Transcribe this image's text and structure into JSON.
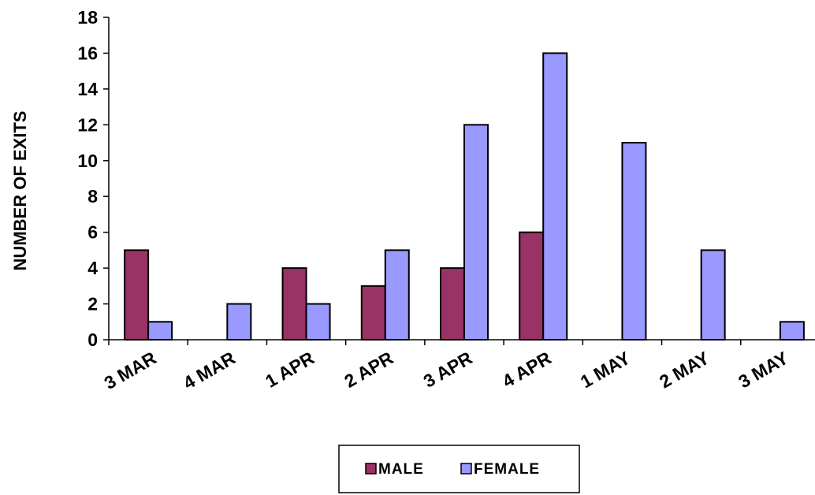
{
  "chart_data": {
    "type": "bar",
    "ylabel": "NUMBER OF EXITS",
    "categories": [
      "3 MAR",
      "4 MAR",
      "1 APR",
      "2 APR",
      "3 APR",
      "4 APR",
      "1 MAY",
      "2 MAY",
      "3 MAY"
    ],
    "series": [
      {
        "name": "MALE",
        "values": [
          5,
          0,
          4,
          3,
          4,
          6,
          0,
          0,
          0
        ],
        "color": "#993366"
      },
      {
        "name": "FEMALE",
        "values": [
          1,
          2,
          2,
          5,
          12,
          16,
          11,
          5,
          1
        ],
        "color": "#9999ff"
      }
    ],
    "ylim": [
      0,
      18
    ],
    "yticks": [
      0,
      2,
      4,
      6,
      8,
      10,
      12,
      14,
      16,
      18
    ],
    "legend": "bottom",
    "grid": false
  }
}
